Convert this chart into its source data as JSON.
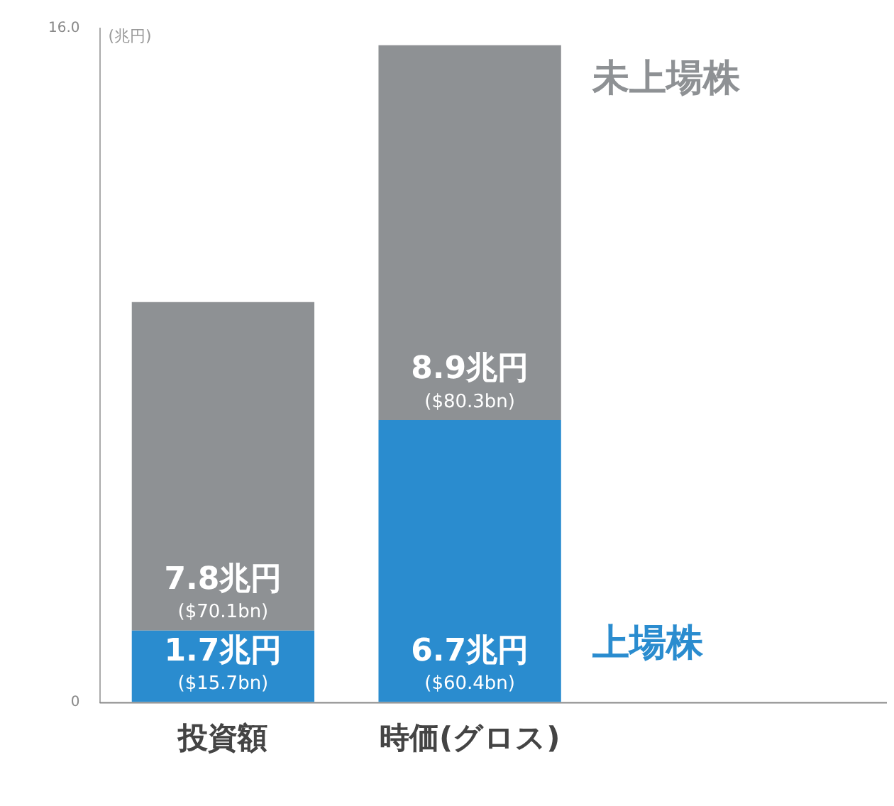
{
  "chart_data": {
    "type": "bar",
    "stacked": true,
    "ylabel": "(兆円)",
    "categories": [
      "投資額",
      "時価(グロス)"
    ],
    "series": [
      {
        "name": "上場株",
        "color": "#2a8ccf",
        "values": [
          1.7,
          6.7
        ],
        "value_labels": [
          "1.7兆円\n($15.7bn)",
          "6.7兆円\n($60.4bn)"
        ]
      },
      {
        "name": "未上場株",
        "color": "#8e9194",
        "values": [
          7.8,
          8.9
        ],
        "value_labels": [
          "7.8兆円\n($70.1bn)",
          "8.9兆円\n($80.3bn)"
        ]
      }
    ],
    "ylim": [
      0,
      16
    ],
    "yticks": [
      0,
      {
        "value": 16,
        "label": "16.0"
      }
    ],
    "grid": false,
    "legend": false
  }
}
